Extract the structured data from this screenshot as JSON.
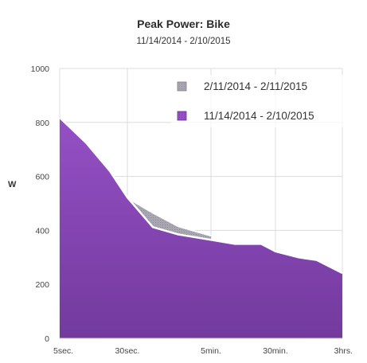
{
  "chart_data": {
    "type": "area",
    "title": "Peak Power: Bike",
    "subtitle": "11/14/2014 - 2/10/2015",
    "ylabel": "W",
    "ylim": [
      0,
      1000
    ],
    "yticks": [
      0,
      200,
      400,
      600,
      800,
      1000
    ],
    "xtick_labels": [
      "5sec.",
      "30sec.",
      "5min.",
      "30min.",
      "3hrs."
    ],
    "grid": true,
    "legend_position": "top-right",
    "series": [
      {
        "name": "2/11/2014 - 2/11/2015",
        "color": "#a7a4b0",
        "points": [
          {
            "x": "30sec.",
            "y": 520
          },
          {
            "x": "1min.",
            "y": 465
          },
          {
            "x": "2min.",
            "y": 415
          },
          {
            "x": "5min.",
            "y": 380
          }
        ]
      },
      {
        "name": "11/14/2014 - 2/10/2015",
        "color": "#8442b0",
        "points": [
          {
            "x": "5sec.",
            "y": 818
          },
          {
            "x": "10sec.",
            "y": 725
          },
          {
            "x": "20sec.",
            "y": 620
          },
          {
            "x": "30sec.",
            "y": 522
          },
          {
            "x": "1min.",
            "y": 412
          },
          {
            "x": "2min.",
            "y": 385
          },
          {
            "x": "5min.",
            "y": 365
          },
          {
            "x": "10min.",
            "y": 350
          },
          {
            "x": "20min.",
            "y": 350
          },
          {
            "x": "30min.",
            "y": 322
          },
          {
            "x": "1hr.",
            "y": 300
          },
          {
            "x": "1.5hrs.",
            "y": 290
          },
          {
            "x": "3hrs.",
            "y": 242
          }
        ]
      }
    ]
  }
}
